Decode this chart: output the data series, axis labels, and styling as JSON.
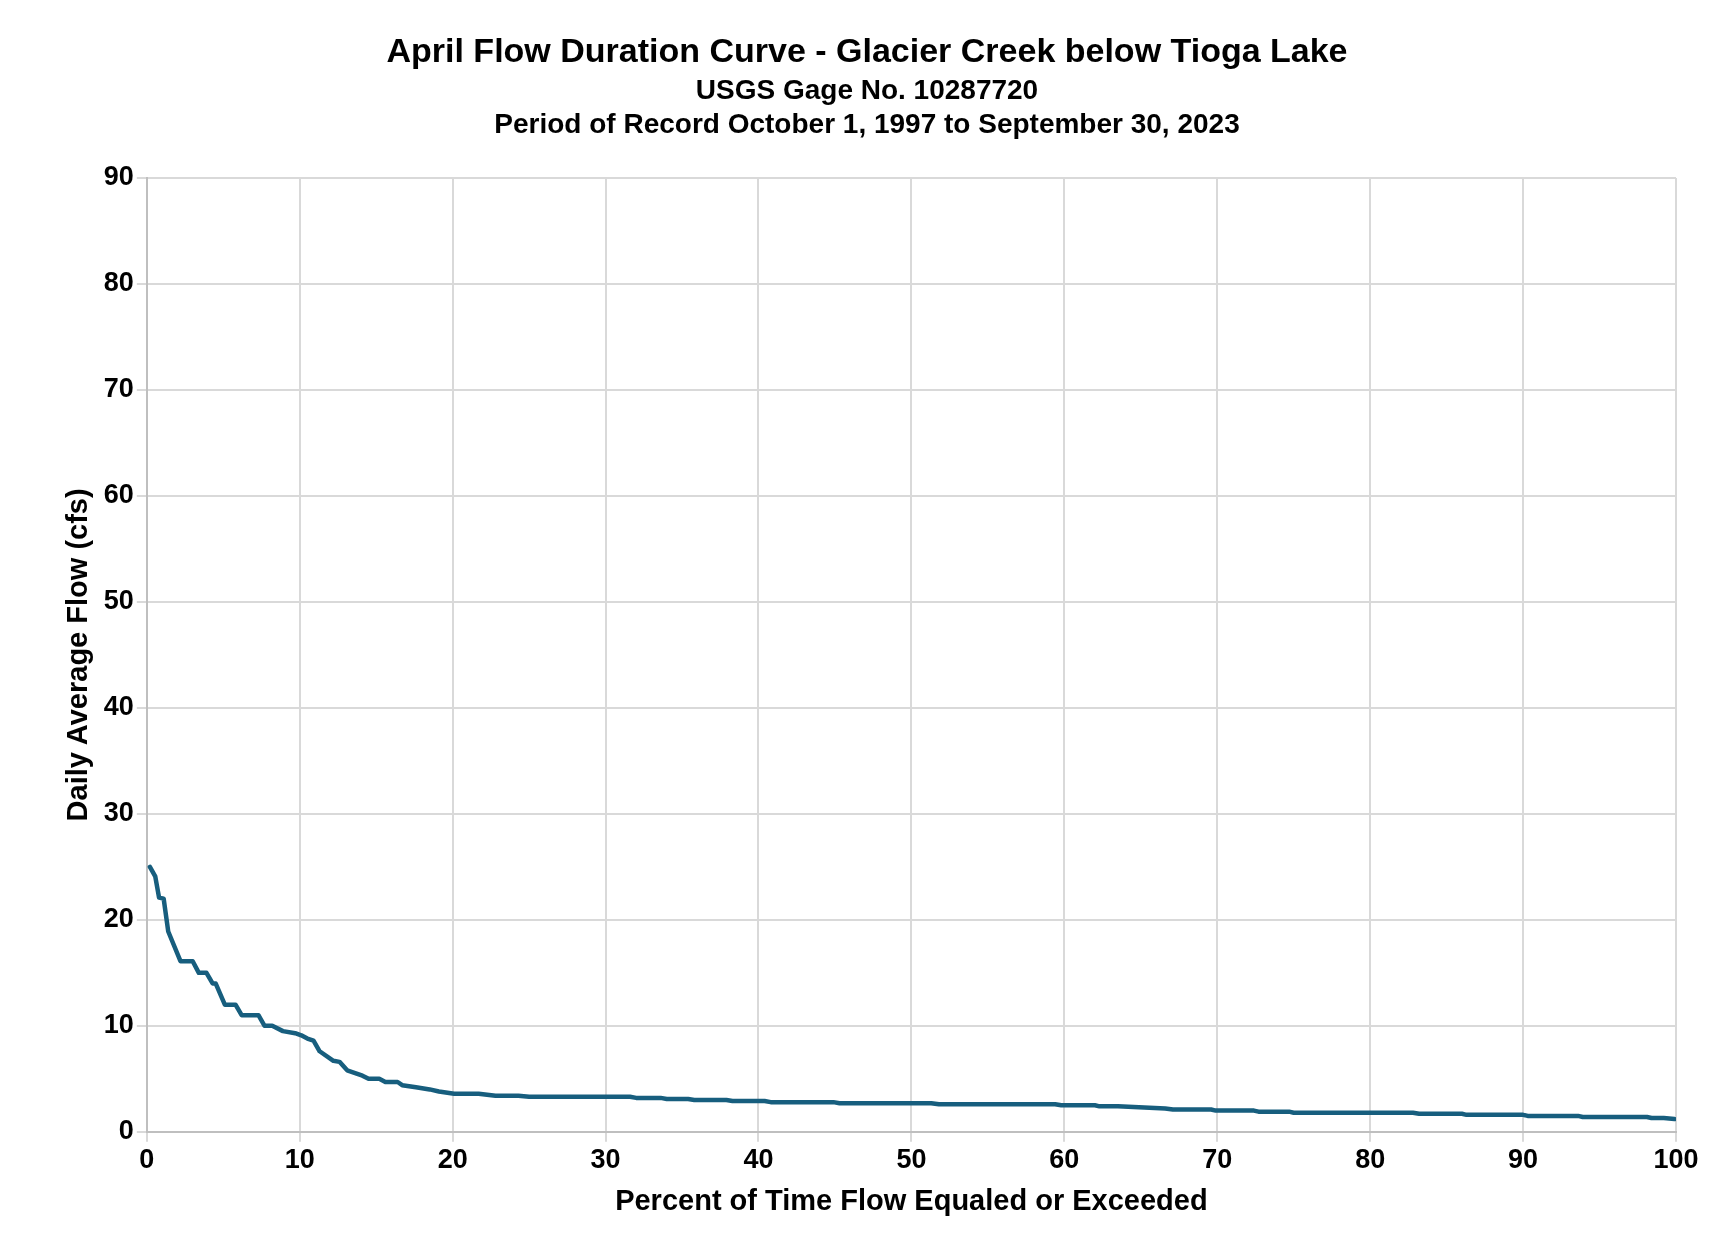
{
  "chart_data": {
    "type": "line",
    "title": "April Flow Duration Curve - Glacier Creek below Tioga Lake",
    "subtitle": "USGS Gage No. 10287720\nPeriod of Record October 1, 1997 to September 30, 2023",
    "xlabel": "Percent of Time Flow Equaled or Exceeded",
    "ylabel": "Daily Average Flow (cfs)",
    "series": [
      {
        "color": "#175e7e",
        "x": [
          0.2,
          0.55,
          0.8,
          1.1,
          1.4,
          2.2,
          3.0,
          3.4,
          3.9,
          4.3,
          4.5,
          5.1,
          5.8,
          6.2,
          7.3,
          7.7,
          8.2,
          8.9,
          9.7,
          10.1,
          10.5,
          10.9,
          11.3,
          12.2,
          12.6,
          13.1,
          14.1,
          14.5,
          15.2,
          15.6,
          16.4,
          16.7,
          17.6,
          18.5,
          19.1,
          20.1,
          21.7,
          22.8,
          24.3,
          25.0,
          31.6,
          32.0,
          33.6,
          34.0,
          35.4,
          35.8,
          37.9,
          38.3,
          39.2,
          40.4,
          40.8,
          44.9,
          45.3,
          51.3,
          51.8,
          59.4,
          59.8,
          62.0,
          62.3,
          63.5,
          66.6,
          67.1,
          69.6,
          69.9,
          72.4,
          72.7,
          74.7,
          75.0,
          77.8,
          78.2,
          82.8,
          83.2,
          86.0,
          86.3,
          90.0,
          90.3,
          93.6,
          93.9,
          98.1,
          98.4,
          99.2,
          99.9
        ],
        "values": [
          25.0,
          24.1,
          22.1,
          22.0,
          18.9,
          16.1,
          16.1,
          15.0,
          15.0,
          14.0,
          14.0,
          12.0,
          12.0,
          11.0,
          11.0,
          10.0,
          10.0,
          9.5,
          9.3,
          9.1,
          8.8,
          8.6,
          7.6,
          6.7,
          6.6,
          5.8,
          5.3,
          5.0,
          5.0,
          4.7,
          4.7,
          4.4,
          4.2,
          4.0,
          3.8,
          3.6,
          3.6,
          3.4,
          3.4,
          3.3,
          3.3,
          3.2,
          3.2,
          3.1,
          3.1,
          3.0,
          3.0,
          2.9,
          2.9,
          2.9,
          2.8,
          2.8,
          2.7,
          2.7,
          2.6,
          2.6,
          2.5,
          2.5,
          2.4,
          2.4,
          2.2,
          2.1,
          2.1,
          2.0,
          2.0,
          1.9,
          1.9,
          1.8,
          1.8,
          1.8,
          1.8,
          1.7,
          1.7,
          1.6,
          1.6,
          1.5,
          1.5,
          1.4,
          1.4,
          1.3,
          1.3,
          1.2
        ]
      }
    ],
    "xlim": [
      0,
      100
    ],
    "xticks": [
      0,
      10,
      20,
      30,
      40,
      50,
      60,
      70,
      80,
      90,
      100
    ],
    "ylim": [
      0,
      90
    ],
    "yticks": [
      0,
      10,
      20,
      30,
      40,
      50,
      60,
      70,
      80,
      90
    ],
    "grid": true,
    "legend": false,
    "marker": "none",
    "line_style": "solid"
  }
}
